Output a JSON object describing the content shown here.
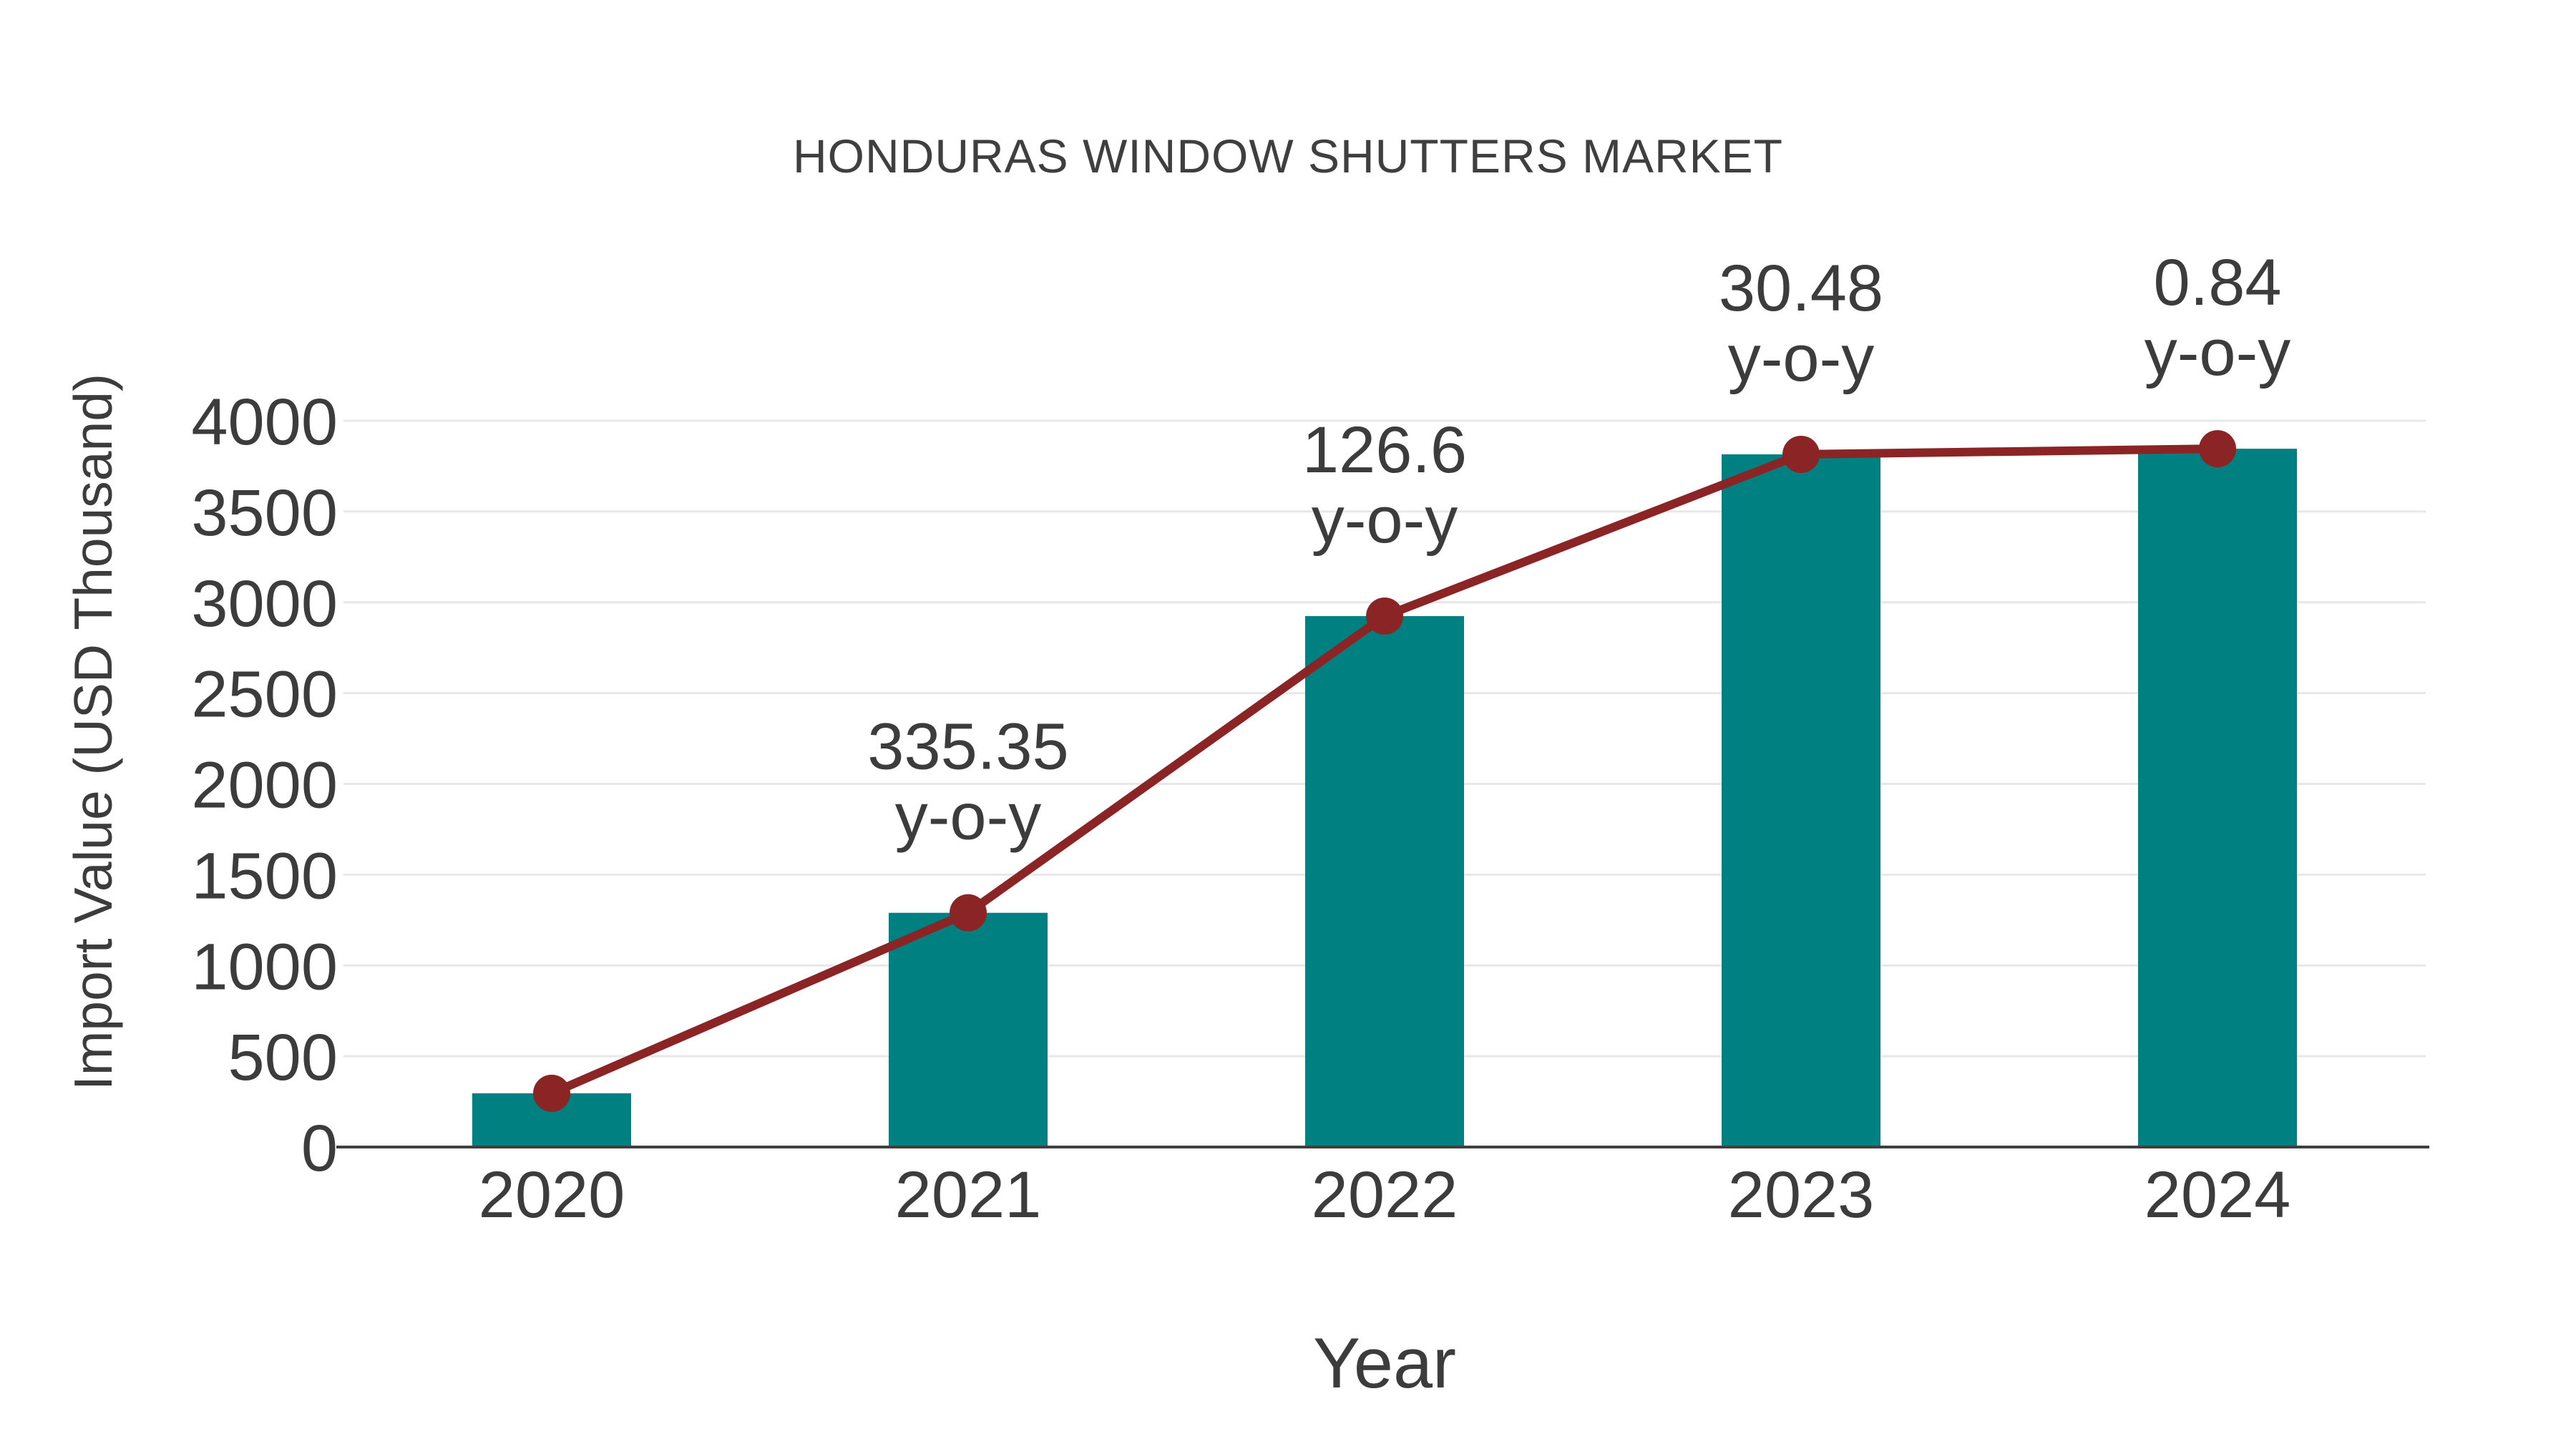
{
  "chart_data": {
    "type": "bar",
    "title": "HONDURAS WINDOW SHUTTERS MARKET",
    "xlabel": "Year",
    "ylabel": "Import Value (USD Thousand)",
    "categories": [
      "2020",
      "2021",
      "2022",
      "2023",
      "2024"
    ],
    "series": [
      {
        "name": "Import Value",
        "type": "bar",
        "color": "#008080",
        "values": [
          296,
          1290,
          2924,
          3815,
          3846
        ]
      },
      {
        "name": "Trend",
        "type": "line",
        "color": "#8B2424",
        "values": [
          296,
          1290,
          2924,
          3815,
          3846
        ]
      }
    ],
    "annotations": [
      {
        "category": "2021",
        "value": "335.35",
        "suffix": "y-o-y"
      },
      {
        "category": "2022",
        "value": "126.6",
        "suffix": "y-o-y"
      },
      {
        "category": "2023",
        "value": "30.48",
        "suffix": "y-o-y"
      },
      {
        "category": "2024",
        "value": "0.84",
        "suffix": "y-o-y"
      }
    ],
    "ylim": [
      0,
      4000
    ],
    "yticks": [
      0,
      500,
      1000,
      1500,
      2000,
      2500,
      3000,
      3500,
      4000
    ],
    "grid": true,
    "legend": false,
    "colors": {
      "bar": "#008080",
      "line": "#8B2424",
      "marker": "#8B2424",
      "gridline": "#E8E8E8",
      "axis_line": "#3F3F3F",
      "tick_text": "#3C3C3C",
      "title_text": "#3F3F3F",
      "background": "#FFFFFF"
    }
  }
}
